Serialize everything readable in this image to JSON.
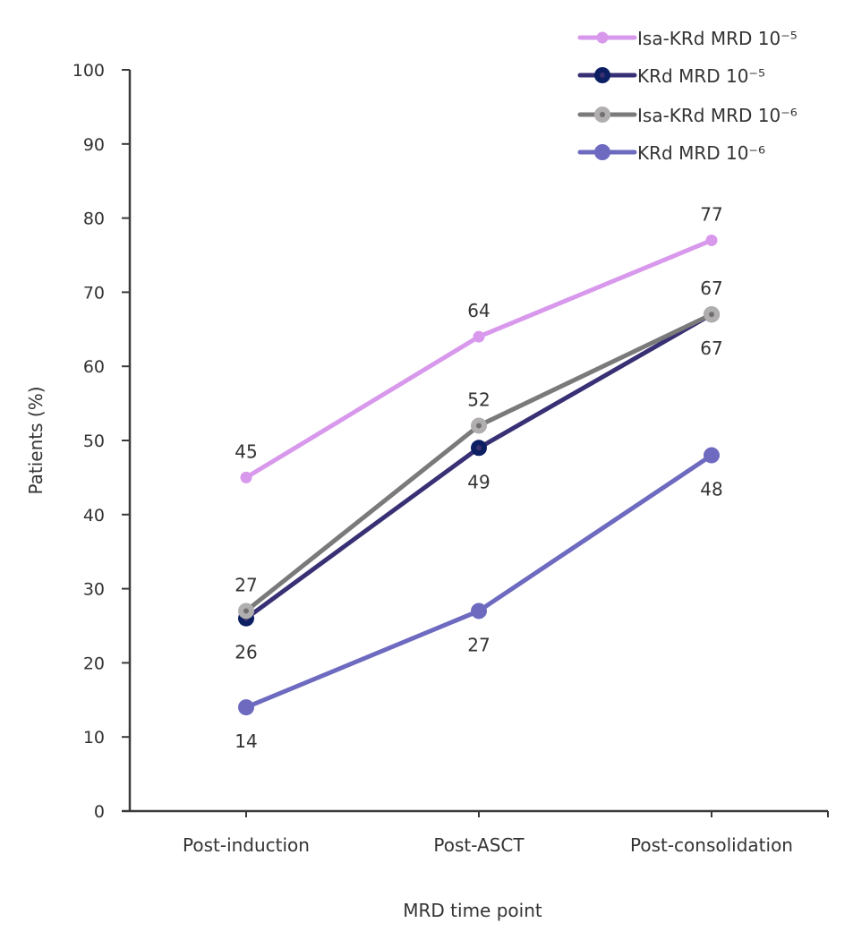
{
  "chart_data": {
    "type": "line",
    "title": "",
    "xlabel": "MRD time point",
    "ylabel": "Patients (%)",
    "categories": [
      "Post-induction",
      "Post-ASCT",
      "Post-consolidation"
    ],
    "ylim": [
      0,
      100
    ],
    "yticks": [
      0,
      10,
      20,
      30,
      40,
      50,
      60,
      70,
      80,
      90,
      100
    ],
    "grid": false,
    "legend_position": "top-right",
    "series": [
      {
        "name": "Isa-KRd MRD 10⁻⁵",
        "values": [
          45,
          64,
          77
        ],
        "color": "#d898ec",
        "marker_fill": "#d898ec",
        "marker_center": "#d898ec",
        "label_positions": [
          "above",
          "above",
          "above"
        ]
      },
      {
        "name": "KRd MRD 10⁻⁵",
        "values": [
          26,
          49,
          67
        ],
        "color": "#383074",
        "marker_fill": "#0c1f63",
        "marker_center": "#3a2f6e",
        "label_positions": [
          "below",
          "below",
          "none"
        ]
      },
      {
        "name": "Isa-KRd MRD 10⁻⁶",
        "values": [
          27,
          52,
          67
        ],
        "color": "#7a7a7a",
        "marker_fill": "#b0aeae",
        "marker_center": "#707070",
        "label_positions": [
          "above",
          "above",
          "above-below"
        ]
      },
      {
        "name": "KRd MRD 10⁻⁶",
        "values": [
          14,
          27,
          48
        ],
        "color": "#6d6ac0",
        "marker_fill": "#6d6ac0",
        "marker_center": "#6d6ac0",
        "label_positions": [
          "below",
          "below",
          "below"
        ]
      }
    ],
    "data_labels": [
      {
        "series": 0,
        "index": 0,
        "text": "45",
        "pos": "above"
      },
      {
        "series": 0,
        "index": 1,
        "text": "64",
        "pos": "above"
      },
      {
        "series": 0,
        "index": 2,
        "text": "77",
        "pos": "above"
      },
      {
        "series": 2,
        "index": 0,
        "text": "27",
        "pos": "above"
      },
      {
        "series": 1,
        "index": 0,
        "text": "26",
        "pos": "below"
      },
      {
        "series": 2,
        "index": 1,
        "text": "52",
        "pos": "above"
      },
      {
        "series": 1,
        "index": 1,
        "text": "49",
        "pos": "below"
      },
      {
        "series": 2,
        "index": 2,
        "text": "67",
        "pos": "above"
      },
      {
        "series": 1,
        "index": 2,
        "text": "67",
        "pos": "below"
      },
      {
        "series": 3,
        "index": 0,
        "text": "14",
        "pos": "below"
      },
      {
        "series": 3,
        "index": 1,
        "text": "27",
        "pos": "below"
      },
      {
        "series": 3,
        "index": 2,
        "text": "48",
        "pos": "below"
      }
    ]
  }
}
